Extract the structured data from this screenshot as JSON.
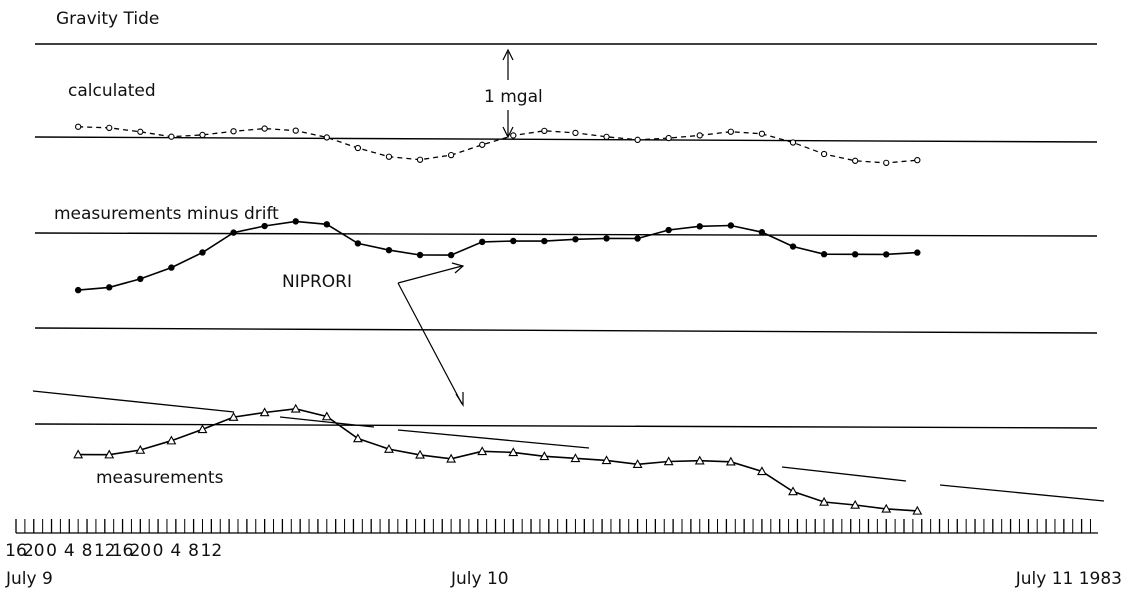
{
  "chart_data": {
    "type": "line",
    "title": "Gravity Tide",
    "xlabel": "",
    "ylabel": "",
    "grid": false,
    "x_axis": {
      "unit": "hour",
      "start_hour_label": "16",
      "tick_labels": [
        "16",
        "20",
        "0",
        "4",
        "8",
        "12",
        "16",
        "20",
        "0",
        "4",
        "8",
        "12"
      ],
      "date_labels": [
        "July 9",
        "July 10",
        "July 11  1983"
      ]
    },
    "scale_annotation": "1 mgal",
    "annotation": "NIPRORI",
    "series": [
      {
        "name": "calculated",
        "marker": "open-circle",
        "line": "dashed",
        "x": [
          14,
          21,
          28,
          35,
          42,
          49,
          56,
          63,
          70,
          77,
          84,
          91,
          98,
          105,
          112,
          119,
          126,
          133,
          140,
          147,
          154,
          161,
          168,
          175,
          182,
          189,
          196,
          203
        ],
        "values": [
          0.11,
          0.1,
          0.06,
          0.01,
          0.03,
          0.07,
          0.1,
          0.08,
          0.01,
          -0.1,
          -0.19,
          -0.22,
          -0.17,
          -0.06,
          0.04,
          0.09,
          0.07,
          0.03,
          0,
          0.02,
          0.05,
          0.09,
          0.07,
          -0.02,
          -0.14,
          -0.21,
          -0.23,
          -0.2
        ]
      },
      {
        "name": "measurements minus drift",
        "marker": "filled-circle",
        "line": "solid",
        "x": [
          14,
          21,
          28,
          35,
          42,
          49,
          56,
          63,
          70,
          77,
          84,
          91,
          98,
          105,
          112,
          119,
          126,
          133,
          140,
          147,
          154,
          161,
          168,
          175,
          182,
          189,
          196,
          203
        ],
        "values": [
          -0.6,
          -0.57,
          -0.48,
          -0.36,
          -0.2,
          0.01,
          0.08,
          0.13,
          0.1,
          -0.1,
          -0.17,
          -0.22,
          -0.22,
          -0.08,
          -0.07,
          -0.07,
          -0.05,
          -0.04,
          -0.04,
          0.05,
          0.09,
          0.1,
          0.03,
          -0.12,
          -0.2,
          -0.2,
          -0.2,
          -0.18
        ]
      },
      {
        "name": "measurements",
        "marker": "open-triangle",
        "line": "solid",
        "x": [
          14,
          21,
          28,
          35,
          42,
          49,
          56,
          63,
          70,
          77,
          84,
          91,
          98,
          105,
          112,
          119,
          126,
          133,
          140,
          147,
          154,
          161,
          168,
          175,
          182,
          189,
          196,
          203
        ],
        "values": [
          -0.32,
          -0.32,
          -0.27,
          -0.17,
          -0.05,
          0.08,
          0.13,
          0.17,
          0.09,
          -0.14,
          -0.25,
          -0.31,
          -0.35,
          -0.27,
          -0.28,
          -0.32,
          -0.34,
          -0.36,
          -0.4,
          -0.37,
          -0.36,
          -0.37,
          -0.47,
          -0.68,
          -0.79,
          -0.82,
          -0.86,
          -0.88
        ]
      }
    ]
  }
}
